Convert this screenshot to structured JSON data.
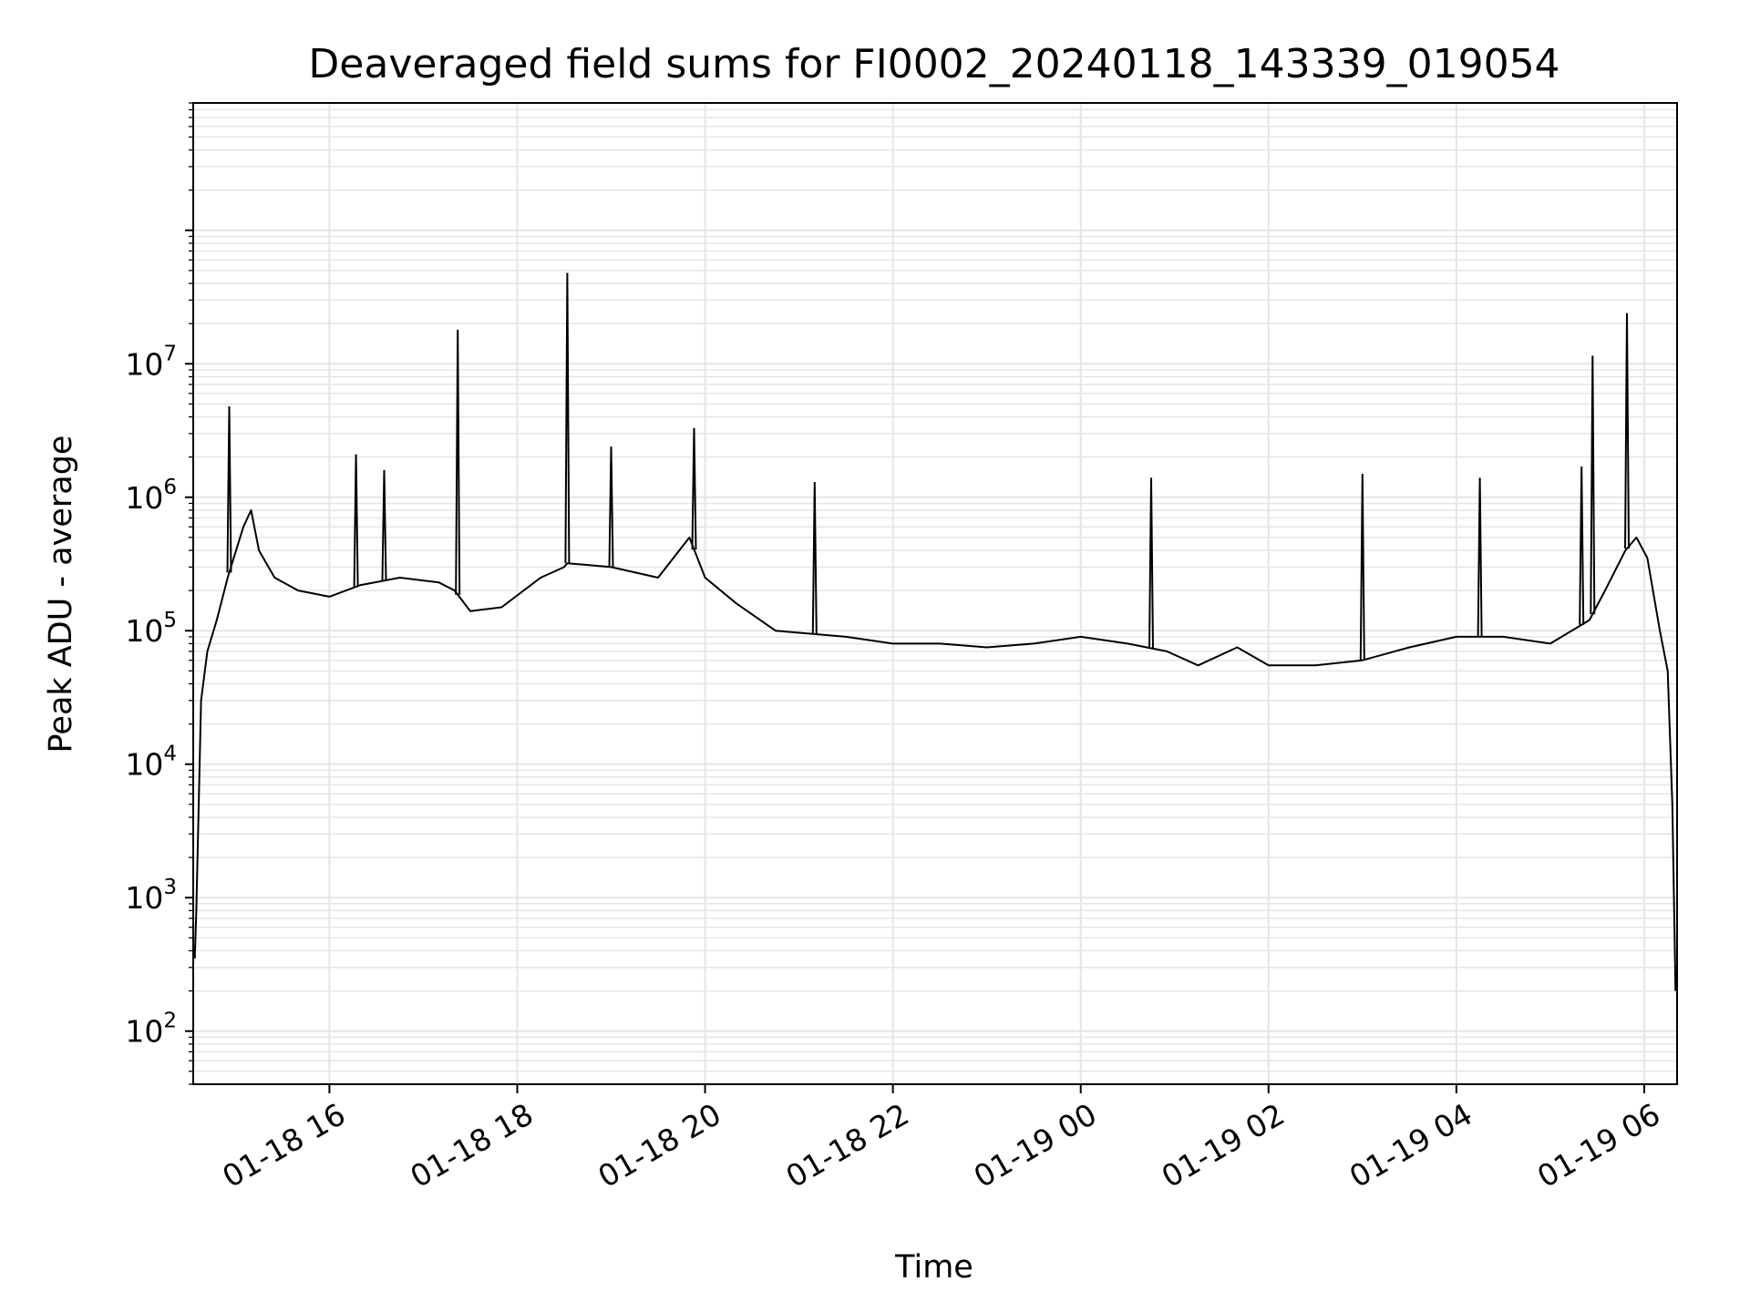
{
  "chart_data": {
    "type": "line",
    "title": "Deaveraged field sums for FI0002_20240118_143339_019054",
    "xlabel": "Time",
    "ylabel": "Peak ADU - average",
    "y_scale": "log",
    "ylim": [
      40,
      900000000
    ],
    "xlim": [
      "2024-01-18 14:33",
      "2024-01-19 06:21"
    ],
    "grid": true,
    "line_color": "#000000",
    "grid_color": "#e5e5e5",
    "x_ticks": [
      {
        "value": "2024-01-18 16:00",
        "label": "01-18 16"
      },
      {
        "value": "2024-01-18 18:00",
        "label": "01-18 18"
      },
      {
        "value": "2024-01-18 20:00",
        "label": "01-18 20"
      },
      {
        "value": "2024-01-18 22:00",
        "label": "01-18 22"
      },
      {
        "value": "2024-01-19 00:00",
        "label": "01-19 00"
      },
      {
        "value": "2024-01-19 02:00",
        "label": "01-19 02"
      },
      {
        "value": "2024-01-19 04:00",
        "label": "01-19 04"
      },
      {
        "value": "2024-01-19 06:00",
        "label": "01-19 06"
      }
    ],
    "y_ticks": [
      {
        "value": 100,
        "base": "10",
        "exp": "2"
      },
      {
        "value": 1000,
        "base": "10",
        "exp": "3"
      },
      {
        "value": 10000,
        "base": "10",
        "exp": "4"
      },
      {
        "value": 100000,
        "base": "10",
        "exp": "5"
      },
      {
        "value": 1000000,
        "base": "10",
        "exp": "6"
      },
      {
        "value": 10000000,
        "base": "10",
        "exp": "7"
      }
    ],
    "series": [
      {
        "x": [
          "2024-01-18 14:34",
          "2024-01-18 14:35",
          "2024-01-18 14:38",
          "2024-01-18 14:42",
          "2024-01-18 14:48",
          "2024-01-18 14:55",
          "2024-01-18 15:05",
          "2024-01-18 15:10",
          "2024-01-18 15:15",
          "2024-01-18 15:25",
          "2024-01-18 15:40",
          "2024-01-18 16:00",
          "2024-01-18 16:20",
          "2024-01-18 16:45",
          "2024-01-18 17:10",
          "2024-01-18 17:20",
          "2024-01-18 17:30",
          "2024-01-18 17:50",
          "2024-01-18 18:15",
          "2024-01-18 18:30",
          "2024-01-18 18:32",
          "2024-01-18 19:00",
          "2024-01-18 19:30",
          "2024-01-18 19:50",
          "2024-01-18 20:00",
          "2024-01-18 20:20",
          "2024-01-18 20:45",
          "2024-01-18 21:30",
          "2024-01-18 22:00",
          "2024-01-18 22:30",
          "2024-01-18 23:00",
          "2024-01-18 23:30",
          "2024-01-19 00:00",
          "2024-01-19 00:30",
          "2024-01-19 00:55",
          "2024-01-19 01:15",
          "2024-01-19 01:40",
          "2024-01-19 02:00",
          "2024-01-19 02:30",
          "2024-01-19 03:00",
          "2024-01-19 03:30",
          "2024-01-19 04:00",
          "2024-01-19 04:30",
          "2024-01-19 05:00",
          "2024-01-19 05:25",
          "2024-01-19 05:35",
          "2024-01-19 05:48",
          "2024-01-19 05:55",
          "2024-01-19 06:02",
          "2024-01-19 06:10",
          "2024-01-19 06:15",
          "2024-01-19 06:18",
          "2024-01-19 06:20"
        ],
        "y": [
          350,
          800,
          30000,
          70000,
          120000,
          250000,
          600000,
          800000,
          400000,
          250000,
          200000,
          180000,
          220000,
          250000,
          230000,
          200000,
          140000,
          150000,
          250000,
          300000,
          320000,
          300000,
          250000,
          500000,
          250000,
          160000,
          100000,
          90000,
          80000,
          80000,
          75000,
          80000,
          90000,
          80000,
          70000,
          55000,
          75000,
          55000,
          55000,
          60000,
          75000,
          90000,
          90000,
          80000,
          120000,
          200000,
          400000,
          500000,
          350000,
          100000,
          50000,
          5000,
          200
        ],
        "peaks": [
          {
            "x": "2024-01-18 14:56",
            "y": 4800000
          },
          {
            "x": "2024-01-18 16:17",
            "y": 2100000
          },
          {
            "x": "2024-01-18 16:35",
            "y": 1600000
          },
          {
            "x": "2024-01-18 17:22",
            "y": 18000000
          },
          {
            "x": "2024-01-18 18:32",
            "y": 48000000
          },
          {
            "x": "2024-01-18 19:00",
            "y": 2400000
          },
          {
            "x": "2024-01-18 19:53",
            "y": 3300000
          },
          {
            "x": "2024-01-18 21:10",
            "y": 1300000
          },
          {
            "x": "2024-01-19 00:45",
            "y": 1400000
          },
          {
            "x": "2024-01-19 03:00",
            "y": 1500000
          },
          {
            "x": "2024-01-19 04:15",
            "y": 1400000
          },
          {
            "x": "2024-01-19 05:20",
            "y": 1700000
          },
          {
            "x": "2024-01-19 05:27",
            "y": 11500000
          },
          {
            "x": "2024-01-19 05:49",
            "y": 24000000
          }
        ]
      }
    ]
  }
}
